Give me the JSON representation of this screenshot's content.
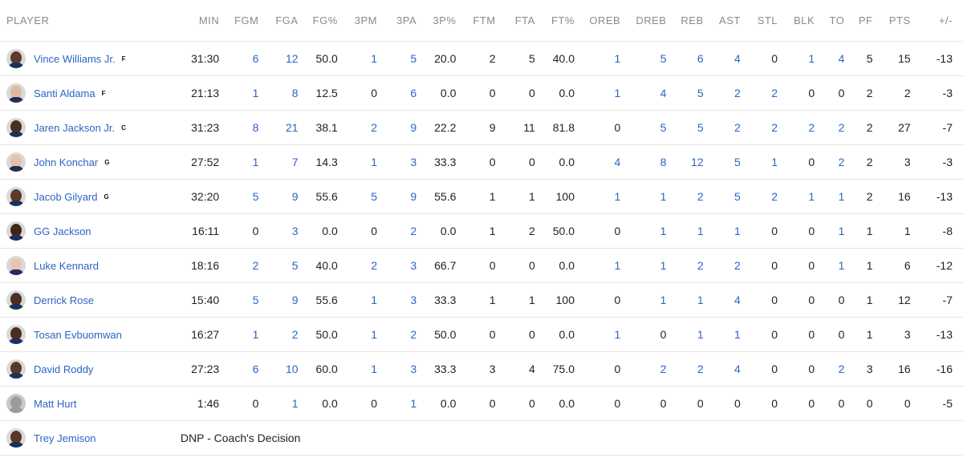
{
  "table": {
    "headers": [
      "PLAYER",
      "MIN",
      "FGM",
      "FGA",
      "FG%",
      "3PM",
      "3PA",
      "3P%",
      "FTM",
      "FTA",
      "FT%",
      "OREB",
      "DREB",
      "REB",
      "AST",
      "STL",
      "BLK",
      "TO",
      "PF",
      "PTS",
      "+/-"
    ],
    "rows": [
      {
        "name": "Vince Williams Jr.",
        "pos": "F",
        "skin": "#5a3b2a",
        "stats": [
          "31:30",
          "6",
          "12",
          "50.0",
          "1",
          "5",
          "20.0",
          "2",
          "5",
          "40.0",
          "1",
          "5",
          "6",
          "4",
          "0",
          "1",
          "4",
          "5",
          "15",
          "-13"
        ]
      },
      {
        "name": "Santi Aldama",
        "pos": "F",
        "skin": "#e0b8a0",
        "stats": [
          "21:13",
          "1",
          "8",
          "12.5",
          "0",
          "6",
          "0.0",
          "0",
          "0",
          "0.0",
          "1",
          "4",
          "5",
          "2",
          "2",
          "0",
          "0",
          "2",
          "2",
          "-3"
        ]
      },
      {
        "name": "Jaren Jackson Jr.",
        "pos": "C",
        "skin": "#4a2e22",
        "stats": [
          "31:23",
          "8",
          "21",
          "38.1",
          "2",
          "9",
          "22.2",
          "9",
          "11",
          "81.8",
          "0",
          "5",
          "5",
          "2",
          "2",
          "2",
          "2",
          "2",
          "27",
          "-7"
        ]
      },
      {
        "name": "John Konchar",
        "pos": "G",
        "skin": "#e6c1a8",
        "stats": [
          "27:52",
          "1",
          "7",
          "14.3",
          "1",
          "3",
          "33.3",
          "0",
          "0",
          "0.0",
          "4",
          "8",
          "12",
          "5",
          "1",
          "0",
          "2",
          "2",
          "3",
          "-3"
        ]
      },
      {
        "name": "Jacob Gilyard",
        "pos": "G",
        "skin": "#5b3a28",
        "stats": [
          "32:20",
          "5",
          "9",
          "55.6",
          "5",
          "9",
          "55.6",
          "1",
          "1",
          "100",
          "1",
          "1",
          "2",
          "5",
          "2",
          "1",
          "1",
          "2",
          "16",
          "-13"
        ]
      },
      {
        "name": "GG Jackson",
        "pos": "",
        "skin": "#3f271c",
        "stats": [
          "16:11",
          "0",
          "3",
          "0.0",
          "0",
          "2",
          "0.0",
          "1",
          "2",
          "50.0",
          "0",
          "1",
          "1",
          "1",
          "0",
          "0",
          "1",
          "1",
          "1",
          "-8"
        ]
      },
      {
        "name": "Luke Kennard",
        "pos": "",
        "skin": "#e8c4aa",
        "stats": [
          "18:16",
          "2",
          "5",
          "40.0",
          "2",
          "3",
          "66.7",
          "0",
          "0",
          "0.0",
          "1",
          "1",
          "2",
          "2",
          "0",
          "0",
          "1",
          "1",
          "6",
          "-12"
        ]
      },
      {
        "name": "Derrick Rose",
        "pos": "",
        "skin": "#4b2f22",
        "stats": [
          "15:40",
          "5",
          "9",
          "55.6",
          "1",
          "3",
          "33.3",
          "1",
          "1",
          "100",
          "0",
          "1",
          "1",
          "4",
          "0",
          "0",
          "0",
          "1",
          "12",
          "-7"
        ]
      },
      {
        "name": "Tosan Evbuomwan",
        "pos": "",
        "skin": "#4a2d20",
        "stats": [
          "16:27",
          "1",
          "2",
          "50.0",
          "1",
          "2",
          "50.0",
          "0",
          "0",
          "0.0",
          "1",
          "0",
          "1",
          "1",
          "0",
          "0",
          "0",
          "1",
          "3",
          "-13"
        ]
      },
      {
        "name": "David Roddy",
        "pos": "",
        "skin": "#5a3826",
        "stats": [
          "27:23",
          "6",
          "10",
          "60.0",
          "1",
          "3",
          "33.3",
          "3",
          "4",
          "75.0",
          "0",
          "2",
          "2",
          "4",
          "0",
          "0",
          "2",
          "3",
          "16",
          "-16"
        ]
      },
      {
        "name": "Matt Hurt",
        "pos": "",
        "skin": "",
        "stats": [
          "1:46",
          "0",
          "1",
          "0.0",
          "0",
          "1",
          "0.0",
          "0",
          "0",
          "0.0",
          "0",
          "0",
          "0",
          "0",
          "0",
          "0",
          "0",
          "0",
          "0",
          "-5"
        ]
      }
    ],
    "dnp_row": {
      "name": "Trey Jemison",
      "skin": "#5a3826",
      "note": "DNP - Coach's Decision"
    }
  }
}
